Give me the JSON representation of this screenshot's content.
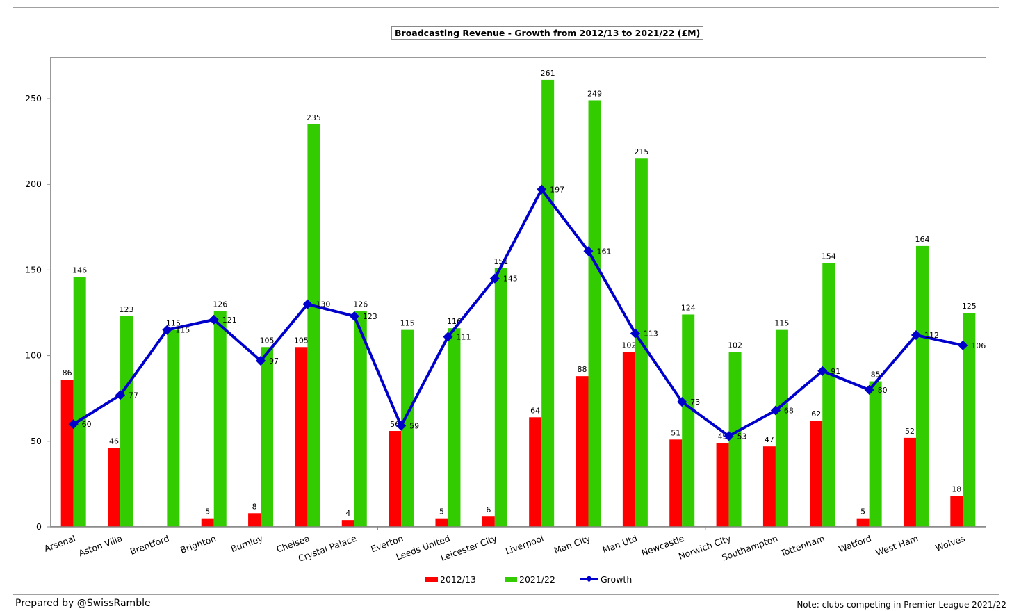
{
  "chart_data": {
    "type": "bar",
    "title": "Broadcasting Revenue - Growth from 2012/13 to 2021/22 (£M)",
    "xlabel": "",
    "ylabel": "",
    "ylim": [
      0,
      275
    ],
    "yticks": [
      0,
      50,
      100,
      150,
      200,
      250
    ],
    "grid": false,
    "legend_position": "bottom",
    "categories": [
      "Arsenal",
      "Aston Villa",
      "Brentford",
      "Brighton",
      "Burnley",
      "Chelsea",
      "Crystal Palace",
      "Everton",
      "Leeds United",
      "Leicester City",
      "Liverpool",
      "Man City",
      "Man Utd",
      "Newcastle",
      "Norwich City",
      "Southampton",
      "Tottenham",
      "Watford",
      "West Ham",
      "Wolves"
    ],
    "series": [
      {
        "name": "2012/13",
        "type": "bar",
        "color": "#ff0000",
        "values": [
          86,
          46,
          null,
          5,
          8,
          105,
          4,
          56,
          5,
          6,
          64,
          88,
          102,
          51,
          49,
          47,
          62,
          5,
          52,
          18
        ]
      },
      {
        "name": "2021/22",
        "type": "bar",
        "color": "#33cc00",
        "values": [
          146,
          123,
          115,
          126,
          105,
          235,
          126,
          115,
          116,
          151,
          261,
          249,
          215,
          124,
          102,
          115,
          154,
          85,
          164,
          125
        ]
      },
      {
        "name": "Growth",
        "type": "line",
        "color": "#0000cc",
        "values": [
          60,
          77,
          115,
          121,
          97,
          130,
          123,
          59,
          111,
          145,
          197,
          161,
          113,
          73,
          53,
          68,
          91,
          80,
          112,
          106
        ]
      }
    ]
  },
  "legend": {
    "items": [
      {
        "label": "2012/13",
        "color": "#ff0000"
      },
      {
        "label": "2021/22",
        "color": "#33cc00"
      },
      {
        "label": "Growth",
        "color": "#0000cc"
      }
    ]
  },
  "footer": {
    "credit": "Prepared by @SwissRamble",
    "note": "Note: clubs competing in Premier League 2021/22"
  }
}
